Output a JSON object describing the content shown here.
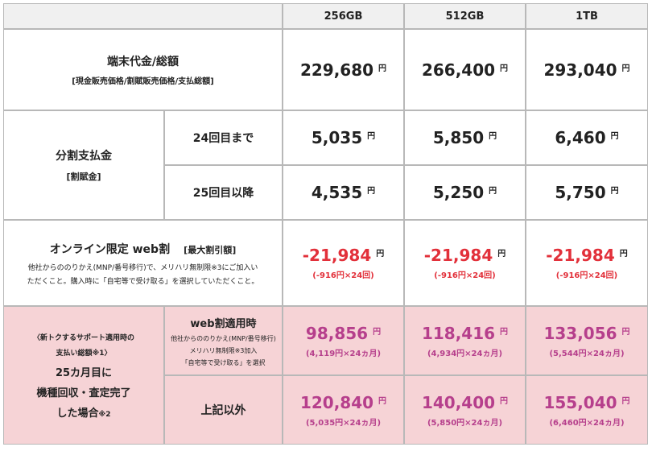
{
  "headers": [
    "256GB",
    "512GB",
    "1TB"
  ],
  "row_device": {
    "label": "端末代金/総額",
    "sublabel": "[現金販売価格/割賦販売価格/支払総額]",
    "values": [
      "229,680",
      "266,400",
      "293,040"
    ],
    "unit": "円"
  },
  "row_installment": {
    "label": "分割支払金",
    "sublabel": "[割賦金]",
    "upto24_label": "24回目まで",
    "upto24_values": [
      "5,035",
      "5,850",
      "6,460"
    ],
    "after25_label": "25回目以降",
    "after25_values": [
      "4,535",
      "5,250",
      "5,750"
    ]
  },
  "row_online": {
    "title": "オンライン限定 web割",
    "title_tag": "[最大割引額]",
    "note_line1": "他社からののりかえ(MNP/番号移行)で、メリハリ無制限※3にご加入い",
    "note_line2": "ただくこと。購入時に「自宅等で受け取る」を選択していただくこと。",
    "values": [
      "-21,984",
      "-21,984",
      "-21,984"
    ],
    "per_month": [
      "(-916円×24回)",
      "(-916円×24回)",
      "(-916円×24回)"
    ]
  },
  "row_return": {
    "left_line1": "〈新トクするサポート適用時の",
    "left_line2": "支払い総額※1〉",
    "left_line3": "25カ月目に",
    "left_line4": "機種回収・査定完了",
    "left_line5": "した場合",
    "left_line5_note": "※2",
    "web_label": "web割適用時",
    "web_note1": "他社からののりかえ(MNP/番号移行)",
    "web_note2": "メリハリ無制限※3加入",
    "web_note3": "「自宅等で受け取る」を選択",
    "web_values": [
      "98,856",
      "118,416",
      "133,056"
    ],
    "web_monthly": [
      "(4,119円×24ヵ月)",
      "(4,934円×24ヵ月)",
      "(5,544円×24ヵ月)"
    ],
    "other_label": "上記以外",
    "other_values": [
      "120,840",
      "140,400",
      "155,040"
    ],
    "other_monthly": [
      "(5,035円×24ヵ月)",
      "(5,850円×24ヵ月)",
      "(6,460円×24ヵ月)"
    ]
  },
  "colors": {
    "header_bg": "#f0f0f0",
    "pink_bg": "#f6d3d6",
    "red": "#e2303a",
    "magenta": "#b63f8c"
  }
}
